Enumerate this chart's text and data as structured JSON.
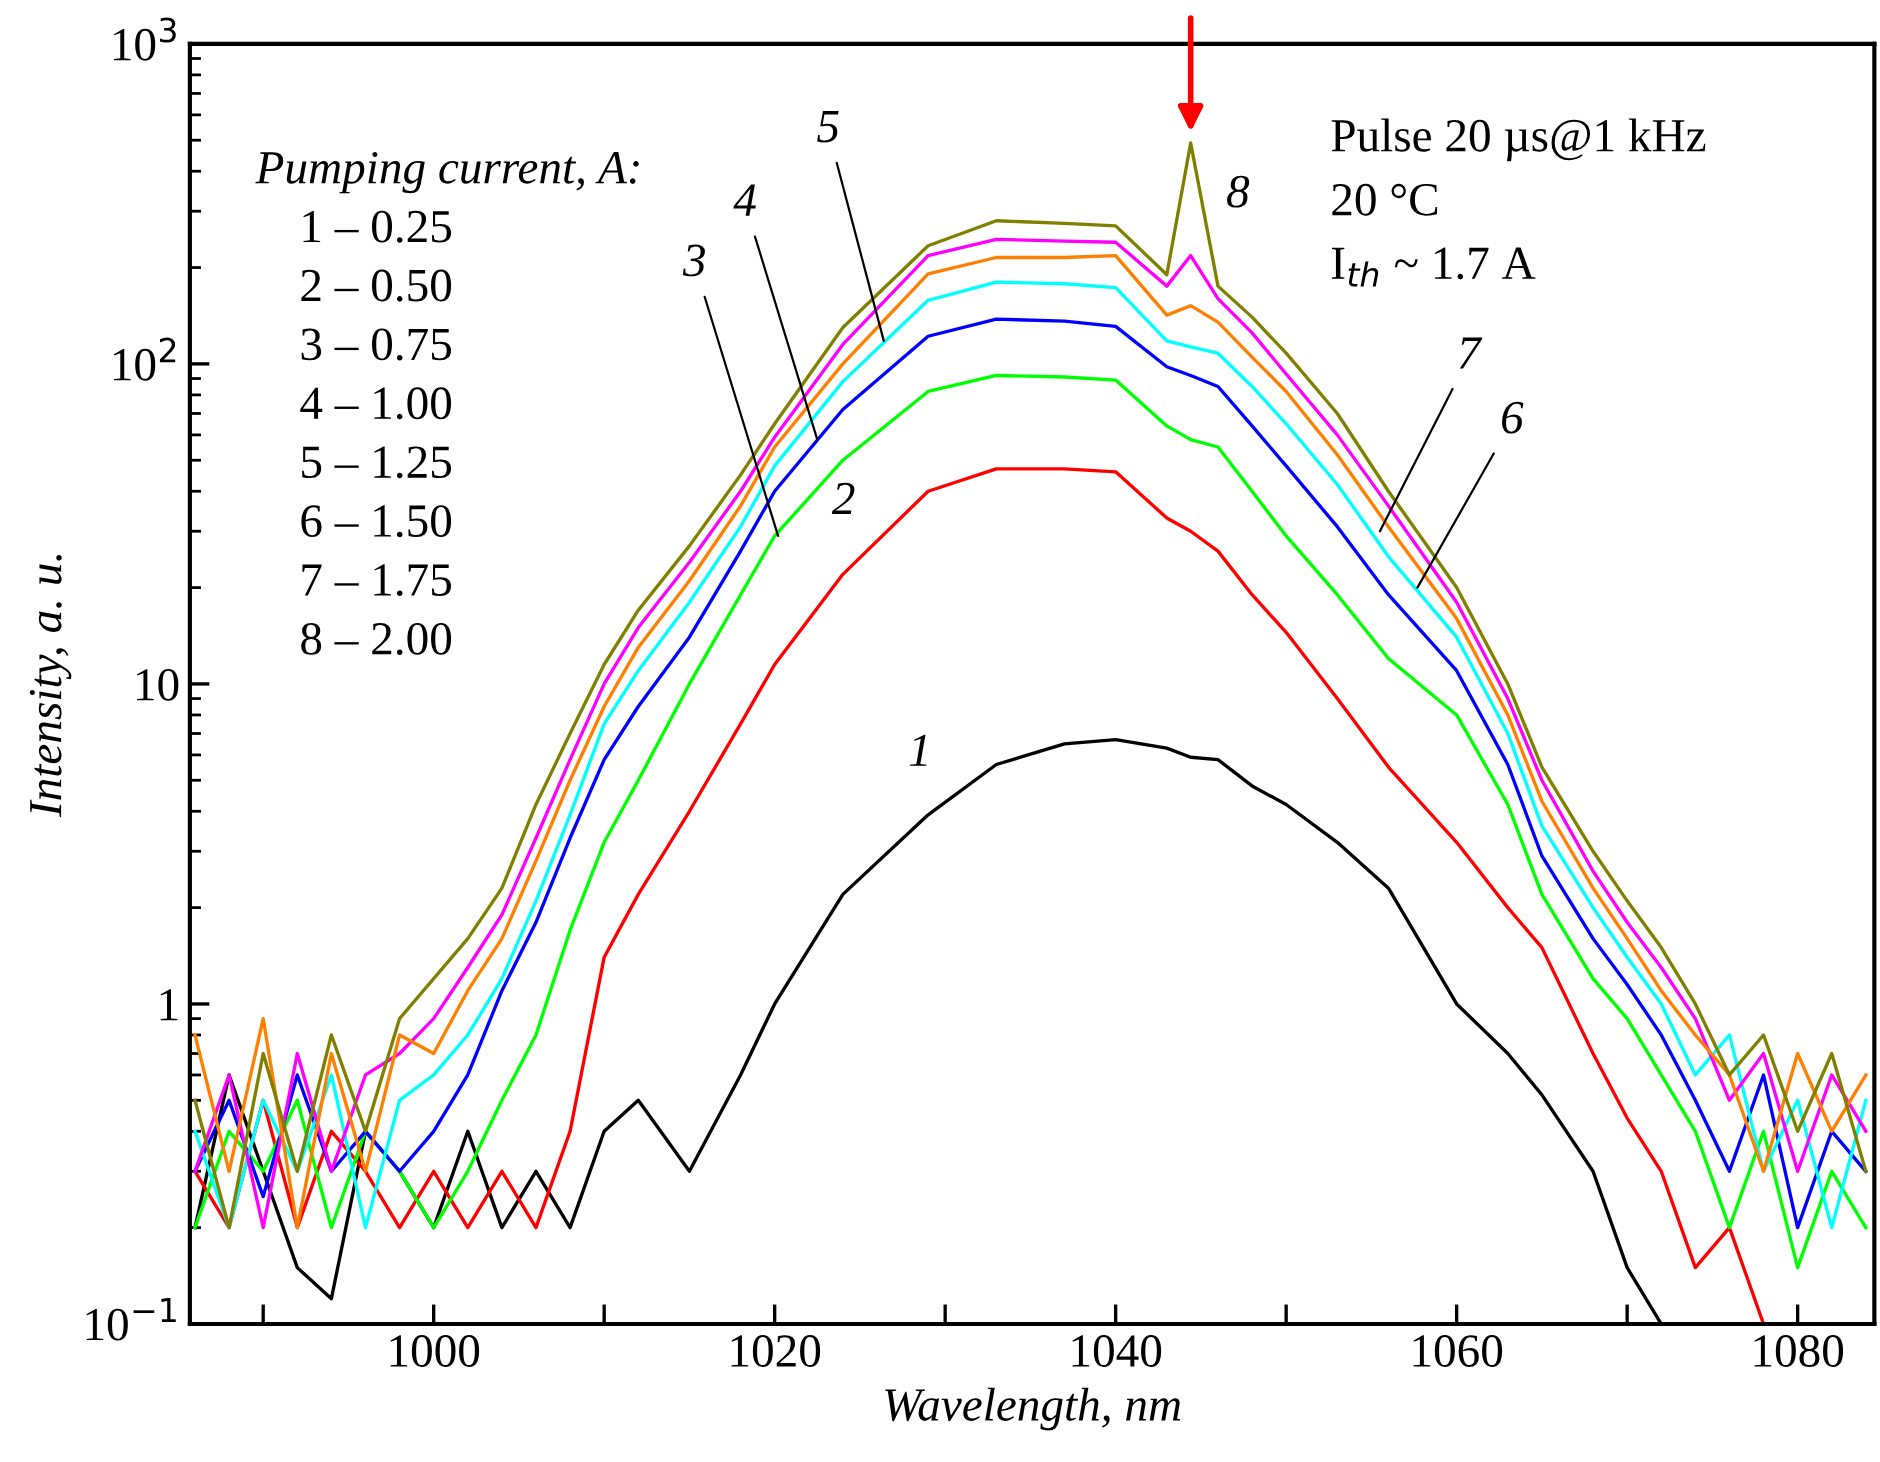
{
  "chart_data": {
    "type": "line",
    "log": "y",
    "xlabel": "Wavelength, nm",
    "ylabel": "Intensity, a. u.",
    "xlim": [
      985.7,
      1084.5
    ],
    "ylim": [
      0.1,
      1000
    ],
    "xticks": [
      {
        "value": 990,
        "label": null
      },
      1000,
      {
        "value": 1010,
        "label": null
      },
      1020,
      {
        "value": 1030,
        "label": null
      },
      1040,
      {
        "value": 1050,
        "label": null
      },
      1060,
      {
        "value": 1070,
        "label": null
      },
      1080
    ],
    "yticks": [
      {
        "value": 0.1,
        "label": "10$^{−1}$"
      },
      1,
      10,
      {
        "value": 100,
        "label": "10$^{2}$"
      },
      {
        "value": 1000,
        "label": "10$^{3}$"
      }
    ],
    "x": [
      986,
      988,
      990,
      992,
      994,
      996,
      998,
      1000,
      1002,
      1004,
      1006,
      1008,
      1010,
      1012,
      1015,
      1018,
      1020,
      1024,
      1029,
      1033,
      1037,
      1040,
      1043,
      1044.4,
      1046,
      1048,
      1050,
      1053,
      1056,
      1060,
      1063,
      1065,
      1068,
      1070,
      1072,
      1074,
      1076,
      1078,
      1080,
      1082,
      1084
    ],
    "series": [
      {
        "color": "#000000",
        "values": [
          0.2,
          0.6,
          0.3,
          0.15,
          0.12,
          0.4,
          0.3,
          0.2,
          0.4,
          0.2,
          0.3,
          0.2,
          0.4,
          0.5,
          0.3,
          0.6,
          1.0,
          2.2,
          3.9,
          5.6,
          6.5,
          6.7,
          6.3,
          5.9,
          5.8,
          4.8,
          4.2,
          3.2,
          2.3,
          1.0,
          0.7,
          0.52,
          0.3,
          0.15,
          0.1,
          null,
          null,
          null,
          null,
          null,
          null
        ]
      },
      {
        "color": "#ff0000",
        "values": [
          0.3,
          0.2,
          0.5,
          0.2,
          0.4,
          0.3,
          0.2,
          0.3,
          0.2,
          0.3,
          0.2,
          0.4,
          1.4,
          2.2,
          4,
          7.5,
          11.5,
          22,
          40,
          47,
          47,
          46,
          33,
          30,
          26,
          19,
          14.5,
          9,
          5.5,
          3.2,
          2,
          1.5,
          0.7,
          0.44,
          0.3,
          0.15,
          0.2,
          0.1,
          null,
          null,
          null
        ]
      },
      {
        "color": "#00ff00",
        "values": [
          0.2,
          0.4,
          0.3,
          0.5,
          0.2,
          0.4,
          0.3,
          0.2,
          0.3,
          0.5,
          0.8,
          1.7,
          3.2,
          5,
          10,
          19,
          29,
          50,
          82,
          92,
          91,
          89,
          64,
          58,
          55,
          40,
          29,
          19,
          12,
          8,
          4.2,
          2.2,
          1.2,
          0.9,
          0.6,
          0.4,
          0.2,
          0.4,
          0.15,
          0.3,
          0.2
        ]
      },
      {
        "color": "#0000ff",
        "values": [
          0.3,
          0.5,
          0.25,
          0.6,
          0.3,
          0.4,
          0.3,
          0.4,
          0.6,
          1.1,
          1.8,
          3.3,
          5.8,
          8.5,
          14,
          26,
          40,
          72,
          122,
          138,
          136,
          131,
          98,
          92,
          85,
          64,
          48,
          31,
          19,
          11,
          5.6,
          2.9,
          1.6,
          1.15,
          0.8,
          0.5,
          0.3,
          0.6,
          0.2,
          0.4,
          0.3
        ]
      },
      {
        "color": "#00ffff",
        "values": [
          0.4,
          0.2,
          0.5,
          0.3,
          0.6,
          0.2,
          0.5,
          0.6,
          0.8,
          1.2,
          2.1,
          3.9,
          7.5,
          11,
          18,
          31,
          48,
          88,
          158,
          180,
          178,
          173,
          118,
          113,
          108,
          85,
          65,
          42,
          25,
          14,
          7,
          3.6,
          2,
          1.4,
          1,
          0.6,
          0.8,
          0.3,
          0.5,
          0.2,
          0.5
        ]
      },
      {
        "color": "#ff00ff",
        "values": [
          0.3,
          0.6,
          0.2,
          0.7,
          0.3,
          0.6,
          0.7,
          0.9,
          1.3,
          1.9,
          3.3,
          5.8,
          10,
          15,
          24,
          40,
          59,
          115,
          218,
          245,
          242,
          240,
          175,
          218,
          160,
          125,
          93,
          60,
          36,
          18,
          9,
          5,
          2.6,
          1.8,
          1.3,
          0.9,
          0.5,
          0.7,
          0.3,
          0.6,
          0.4
        ]
      },
      {
        "color": "#ff8000",
        "values": [
          0.8,
          0.3,
          0.9,
          0.2,
          0.7,
          0.3,
          0.8,
          0.7,
          1.1,
          1.6,
          2.8,
          5,
          8.5,
          13,
          21,
          36,
          55,
          100,
          191,
          215,
          215,
          218,
          142,
          152,
          135,
          105,
          82,
          52,
          31,
          16,
          8,
          4.3,
          2.3,
          1.6,
          1.1,
          0.8,
          0.6,
          0.3,
          0.7,
          0.4,
          0.6
        ]
      },
      {
        "color": "#808000",
        "values": [
          0.5,
          0.2,
          0.7,
          0.3,
          0.8,
          0.4,
          0.9,
          1.2,
          1.6,
          2.3,
          4.2,
          7,
          11.5,
          17,
          27,
          45,
          65,
          130,
          234,
          280,
          275,
          270,
          190,
          490,
          175,
          140,
          108,
          70,
          40,
          20,
          10,
          5.5,
          3,
          2.1,
          1.5,
          1.0,
          0.6,
          0.8,
          0.4,
          0.7,
          0.3
        ]
      }
    ],
    "annotations": [
      "Pumping current, A:",
      "1 – 0.25",
      "2 – 0.50",
      "3 – 0.75",
      "4 – 1.00",
      "5 – 1.25",
      "6 – 1.50",
      "7 – 1.75",
      "8 – 2.00",
      "Pulse 20 µs@1 kHz",
      "20 °C",
      "I$_{th}$ ~ 1.7 A",
      {
        "text": "1",
        "x": 1029,
        "y": 3.9
      },
      {
        "text": "2",
        "x": 1026,
        "y": 28
      },
      {
        "text": "3",
        "x": 1020.2,
        "y": 29
      },
      {
        "text": "4",
        "x": 1022.5,
        "y": 58
      },
      {
        "text": "5",
        "x": 1026.4,
        "y": 118
      },
      {
        "text": "6",
        "x": 1057.7,
        "y": 20
      },
      {
        "text": "7",
        "x": 1055.5,
        "y": 30
      },
      {
        "text": "8",
        "x": 1044.4,
        "y": 490
      }
    ]
  }
}
